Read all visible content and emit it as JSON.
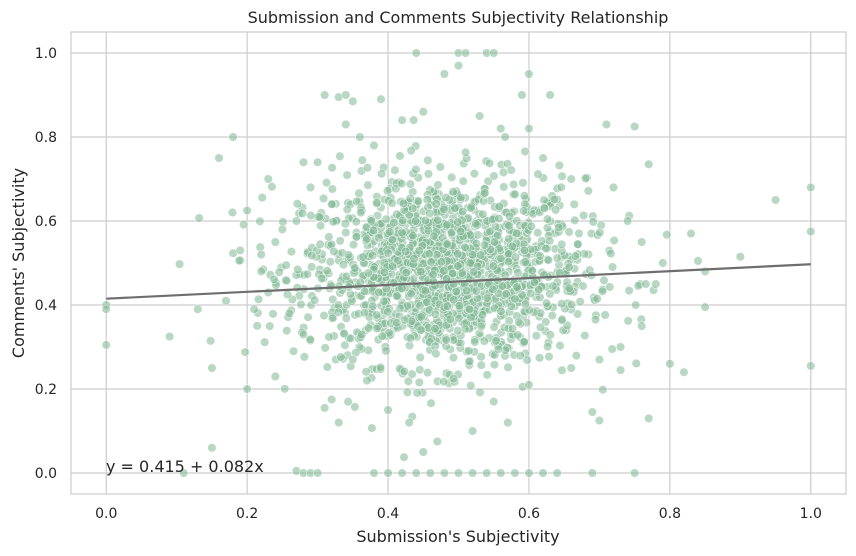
{
  "chart_data": {
    "type": "scatter",
    "title": "Submission and Comments Subjectivity Relationship",
    "xlabel": "Submission's Subjectivity",
    "ylabel": "Comments' Subjectivity",
    "xlim": [
      -0.05,
      1.05
    ],
    "ylim": [
      -0.05,
      1.05
    ],
    "xticks": [
      "0.0",
      "0.2",
      "0.4",
      "0.6",
      "0.8",
      "1.0"
    ],
    "yticks": [
      "0.0",
      "0.2",
      "0.4",
      "0.6",
      "0.8",
      "1.0"
    ],
    "grid": true,
    "point_color": "#7fb894",
    "line_color": "#6e6e6e",
    "background": "#ffffff",
    "grid_color": "#cccccc",
    "regression": {
      "intercept": 0.415,
      "slope": 0.082,
      "label": "y = 0.415 + 0.082x"
    },
    "points": [
      [
        0.0,
        0.4
      ],
      [
        0.0,
        0.39
      ],
      [
        0.0,
        0.305
      ],
      [
        0.11,
        0.0
      ],
      [
        0.15,
        0.06
      ],
      [
        0.15,
        0.25
      ],
      [
        0.16,
        0.75
      ],
      [
        0.18,
        0.8
      ],
      [
        0.2,
        0.625
      ],
      [
        0.22,
        0.48
      ],
      [
        0.23,
        0.7
      ],
      [
        0.21,
        0.39
      ],
      [
        0.27,
        0.005
      ],
      [
        0.28,
        0.0
      ],
      [
        0.29,
        0.0
      ],
      [
        0.3,
        0.0
      ],
      [
        0.31,
        0.9
      ],
      [
        0.33,
        0.895
      ],
      [
        0.34,
        0.9
      ],
      [
        0.35,
        0.885
      ],
      [
        0.39,
        0.89
      ],
      [
        0.44,
        1.0
      ],
      [
        0.5,
        1.0
      ],
      [
        0.51,
        1.0
      ],
      [
        0.54,
        1.0
      ],
      [
        0.55,
        1.0
      ],
      [
        0.5,
        0.97
      ],
      [
        0.48,
        0.95
      ],
      [
        0.6,
        0.95
      ],
      [
        0.59,
        0.9
      ],
      [
        0.63,
        0.9
      ],
      [
        0.71,
        0.83
      ],
      [
        0.75,
        0.825
      ],
      [
        0.77,
        0.735
      ],
      [
        0.95,
        0.65
      ],
      [
        1.0,
        0.68
      ],
      [
        1.0,
        0.575
      ],
      [
        0.9,
        0.515
      ],
      [
        0.83,
        0.57
      ],
      [
        0.84,
        0.505
      ],
      [
        0.85,
        0.48
      ],
      [
        0.85,
        0.395
      ],
      [
        0.82,
        0.24
      ],
      [
        0.8,
        0.26
      ],
      [
        1.0,
        0.255
      ],
      [
        0.77,
        0.13
      ],
      [
        0.73,
        0.245
      ],
      [
        0.7,
        0.125
      ],
      [
        0.69,
        0.145
      ],
      [
        0.38,
        0.0
      ],
      [
        0.4,
        0.0
      ],
      [
        0.42,
        0.0
      ],
      [
        0.44,
        0.0
      ],
      [
        0.46,
        0.0
      ],
      [
        0.48,
        0.0
      ],
      [
        0.5,
        0.0
      ],
      [
        0.52,
        0.0
      ],
      [
        0.54,
        0.0
      ],
      [
        0.56,
        0.0
      ],
      [
        0.58,
        0.0
      ],
      [
        0.6,
        0.0
      ],
      [
        0.62,
        0.0
      ],
      [
        0.64,
        0.0
      ],
      [
        0.69,
        0.0
      ],
      [
        0.75,
        0.0
      ],
      [
        0.45,
        0.05
      ],
      [
        0.47,
        0.075
      ],
      [
        0.43,
        0.12
      ],
      [
        0.33,
        0.12
      ],
      [
        0.32,
        0.175
      ],
      [
        0.31,
        0.155
      ],
      [
        0.24,
        0.23
      ],
      [
        0.2,
        0.2
      ],
      [
        0.09,
        0.325
      ],
      [
        0.13,
        0.39
      ],
      [
        0.17,
        0.41
      ],
      [
        0.19,
        0.53
      ],
      [
        0.22,
        0.52
      ],
      [
        0.25,
        0.58
      ],
      [
        0.27,
        0.6
      ],
      [
        0.29,
        0.68
      ],
      [
        0.28,
        0.74
      ],
      [
        0.3,
        0.74
      ],
      [
        0.34,
        0.83
      ],
      [
        0.36,
        0.8
      ],
      [
        0.38,
        0.78
      ],
      [
        0.42,
        0.84
      ],
      [
        0.45,
        0.86
      ],
      [
        0.53,
        0.85
      ],
      [
        0.56,
        0.82
      ],
      [
        0.6,
        0.82
      ],
      [
        0.62,
        0.75
      ],
      [
        0.66,
        0.7
      ],
      [
        0.72,
        0.68
      ],
      [
        0.74,
        0.6
      ],
      [
        0.76,
        0.55
      ],
      [
        0.79,
        0.5
      ],
      [
        0.78,
        0.45
      ],
      [
        0.76,
        0.35
      ],
      [
        0.73,
        0.3
      ],
      [
        0.7,
        0.27
      ],
      [
        0.66,
        0.25
      ],
      [
        0.6,
        0.21
      ],
      [
        0.55,
        0.17
      ],
      [
        0.52,
        0.1
      ],
      [
        0.57,
        0.12
      ],
      [
        0.4,
        0.15
      ],
      [
        0.37,
        0.22
      ],
      [
        0.35,
        0.27
      ],
      [
        0.28,
        0.33
      ],
      [
        0.26,
        0.38
      ],
      [
        0.23,
        0.43
      ],
      [
        0.24,
        0.55
      ],
      [
        0.32,
        0.64
      ]
    ],
    "cloud": {
      "count": 1700,
      "mean_x": 0.48,
      "sd_x": 0.1,
      "mean_y": 0.48,
      "sd_y": 0.11
    }
  }
}
